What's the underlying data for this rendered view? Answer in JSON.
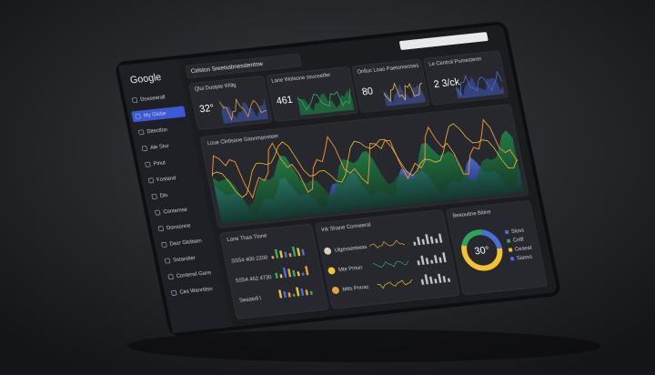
{
  "sidebar": {
    "logo": "Google",
    "items": [
      "Dosseerall",
      "My Globe",
      "Ditectlon",
      "Ale Stur",
      "Pinut",
      "Fostand",
      "Dis",
      "Contemse",
      "Donsonne",
      "Dezr Gloltsen",
      "Sstarstier",
      "Contensl Gans",
      "Ces Wenrtitsn"
    ]
  },
  "header": {
    "title": "Cirlston Sreetssbnesstentow"
  },
  "cards": [
    {
      "title": "Qlui Dusipte Wiilg",
      "value": "32°"
    },
    {
      "title": "Lane Wolsone ssunsetfer",
      "value": "461"
    },
    {
      "title": "Onlluc Loao Paetonresses",
      "value": "80"
    },
    {
      "title": "Le Centrol Pumesterer",
      "value": "2 3/ck"
    }
  ],
  "main_chart": {
    "title": "Loue Clntlsone Gaonmposteer"
  },
  "bottom_left": {
    "title": "Lane Thaa Ttone",
    "rows": [
      "SS54 400 2200",
      "SS54 462 4730",
      "Seaatoll l"
    ]
  },
  "bottom_middle": {
    "title": "Ink Shane Conneeral",
    "rows": [
      "Ulgessestwas",
      "Mte Pntun",
      "Mtts Pnnac"
    ]
  },
  "bottom_right": {
    "title": "Beeouitne Bitine",
    "value": "30°",
    "legend": [
      "Sloss",
      "Cnlfl",
      "Ceaeat",
      "Siasss"
    ]
  }
}
